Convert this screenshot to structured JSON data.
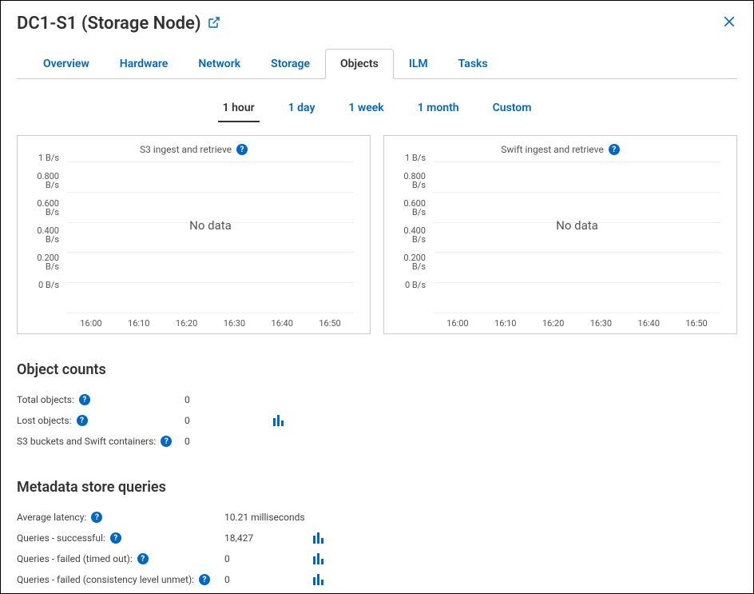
{
  "header": {
    "title": "DC1-S1 (Storage Node)"
  },
  "tabs": [
    "Overview",
    "Hardware",
    "Network",
    "Storage",
    "Objects",
    "ILM",
    "Tasks"
  ],
  "active_tab": "Objects",
  "time_ranges": [
    "1 hour",
    "1 day",
    "1 week",
    "1 month",
    "Custom"
  ],
  "active_time": "1 hour",
  "charts": [
    {
      "title": "S3 ingest and retrieve",
      "y_ticks": [
        "1 B/s",
        "0.800 B/s",
        "0.600 B/s",
        "0.400 B/s",
        "0.200 B/s",
        "0 B/s"
      ],
      "x_ticks": [
        "16:00",
        "16:10",
        "16:20",
        "16:30",
        "16:40",
        "16:50"
      ],
      "no_data_text": "No data"
    },
    {
      "title": "Swift ingest and retrieve",
      "y_ticks": [
        "1 B/s",
        "0.800 B/s",
        "0.600 B/s",
        "0.400 B/s",
        "0.200 B/s",
        "0 B/s"
      ],
      "x_ticks": [
        "16:00",
        "16:10",
        "16:20",
        "16:30",
        "16:40",
        "16:50"
      ],
      "no_data_text": "No data"
    }
  ],
  "object_counts": {
    "title": "Object counts",
    "rows": [
      {
        "label": "Total objects:",
        "value": "0",
        "chart_icon": false
      },
      {
        "label": "Lost objects:",
        "value": "0",
        "chart_icon": true
      },
      {
        "label": "S3 buckets and Swift containers:",
        "value": "0",
        "chart_icon": false
      }
    ]
  },
  "metadata_queries": {
    "title": "Metadata store queries",
    "rows": [
      {
        "label": "Average latency:",
        "value": "10.21 milliseconds",
        "chart_icon": false
      },
      {
        "label": "Queries - successful:",
        "value": "18,427",
        "chart_icon": true
      },
      {
        "label": "Queries - failed (timed out):",
        "value": "0",
        "chart_icon": true
      },
      {
        "label": "Queries - failed (consistency level unmet):",
        "value": "0",
        "chart_icon": true
      }
    ]
  },
  "colors": {
    "link": "#0067c5",
    "border": "#ccc",
    "grid": "#eee"
  }
}
